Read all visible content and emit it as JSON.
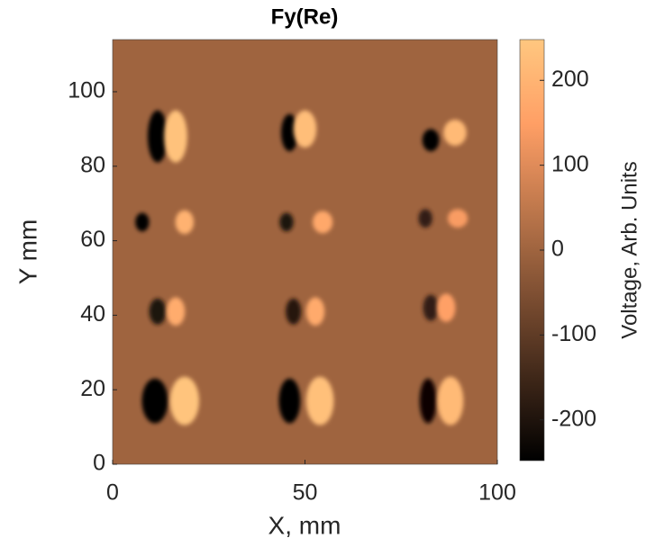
{
  "chart_data": {
    "type": "heatmap",
    "title": "Fy(Re)",
    "xlabel": "X, mm",
    "ylabel": "Y mm",
    "colorbar_label": "Voltage, Arb. Units",
    "colormap": "copper",
    "xlim": [
      0,
      100
    ],
    "ylim": [
      0,
      114
    ],
    "xticks": [
      0,
      50,
      100
    ],
    "yticks": [
      0,
      20,
      40,
      60,
      80,
      100
    ],
    "clim": [
      -248,
      248
    ],
    "cticks": [
      -200,
      -100,
      0,
      100,
      200
    ],
    "x": [
      11.7,
      16.4,
      46,
      50,
      82.7,
      89,
      7.7,
      18.7,
      45.2,
      54.6,
      81.3,
      89.7,
      11.7,
      16.4,
      47,
      52.7,
      82.7,
      86.7,
      11,
      18.7,
      46,
      53.9,
      82,
      87.8
    ],
    "y": [
      88,
      88,
      89,
      90,
      87,
      89,
      65,
      65,
      65,
      65,
      66,
      66,
      41,
      41,
      41,
      41,
      42,
      42,
      17,
      17,
      17,
      17,
      17,
      17
    ],
    "values": [
      -245,
      235,
      -245,
      225,
      -240,
      215,
      -240,
      195,
      -200,
      170,
      -170,
      140,
      -200,
      180,
      -190,
      175,
      -170,
      150,
      -245,
      240,
      -240,
      230,
      -235,
      215
    ],
    "rx": [
      2.6,
      3,
      2.2,
      3,
      2.2,
      3,
      1.8,
      2.4,
      1.8,
      2.6,
      1.8,
      2.6,
      2.2,
      2.4,
      2,
      2.4,
      2,
      2.4,
      3.4,
      3.8,
      2.8,
      3.6,
      2.2,
      3.4
    ],
    "ry": [
      7,
      7,
      5,
      5,
      3,
      3.5,
      2.5,
      3.2,
      2.5,
      3,
      2.5,
      2.5,
      3.5,
      3.8,
      3.5,
      3.8,
      3.5,
      3.8,
      6,
      6.5,
      6,
      6.5,
      6,
      6.5
    ]
  }
}
